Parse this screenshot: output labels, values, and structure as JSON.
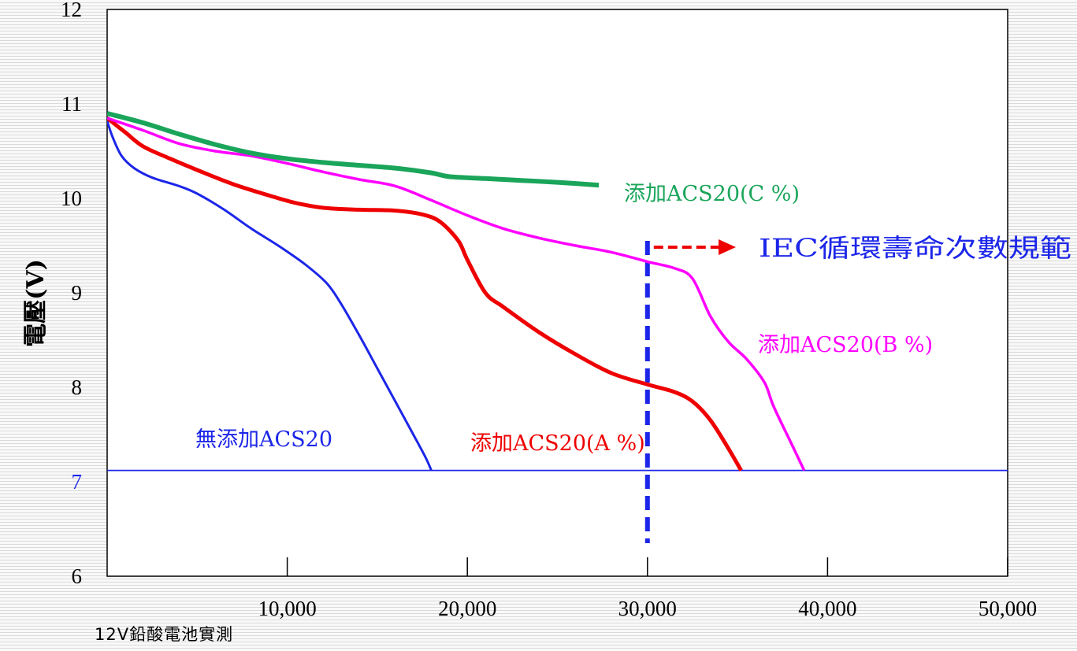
{
  "chart_data": {
    "type": "line",
    "title": "",
    "xlabel": "",
    "ylabel": "電壓(V)",
    "xlim": [
      0,
      50000
    ],
    "ylim": [
      6,
      12
    ],
    "x_ticks": [
      10000,
      20000,
      30000,
      40000,
      50000
    ],
    "x_tick_labels": [
      "10,000",
      "20,000",
      "30,000",
      "40,000",
      "50,000"
    ],
    "y_ticks": [
      6,
      7,
      8,
      9,
      10,
      11,
      12
    ],
    "y_tick_labels": [
      "6",
      "7",
      "8",
      "9",
      "10",
      "11",
      "12"
    ],
    "grid": false,
    "series": [
      {
        "name": "無添加ACS20",
        "color": "#1c26e8",
        "x": [
          0,
          300,
          800,
          1500,
          2500,
          4000,
          5000,
          6500,
          8000,
          9500,
          11000,
          12200,
          13000,
          14000,
          15000,
          16000,
          17000,
          17700,
          18000
        ],
        "y": [
          10.82,
          10.65,
          10.45,
          10.32,
          10.22,
          10.13,
          10.05,
          9.88,
          9.68,
          9.5,
          9.3,
          9.1,
          8.88,
          8.55,
          8.2,
          7.85,
          7.5,
          7.25,
          7.12
        ]
      },
      {
        "name": "添加ACS20(A %)",
        "color": "#ee0000",
        "x": [
          0,
          1000,
          2000,
          3500,
          5000,
          7000,
          9000,
          10500,
          12000,
          14000,
          16000,
          17500,
          18500,
          19500,
          20000,
          21000,
          22000,
          24000,
          26000,
          28000,
          30000,
          31500,
          32500,
          33500,
          34500,
          35200
        ],
        "y": [
          10.85,
          10.7,
          10.55,
          10.42,
          10.3,
          10.15,
          10.03,
          9.95,
          9.9,
          9.88,
          9.87,
          9.83,
          9.75,
          9.55,
          9.35,
          9.0,
          8.85,
          8.58,
          8.35,
          8.15,
          8.03,
          7.95,
          7.85,
          7.65,
          7.35,
          7.12
        ]
      },
      {
        "name": "添加ACS20(B %)",
        "color": "#ff00ff",
        "x": [
          0,
          2000,
          4000,
          6000,
          8000,
          10000,
          12000,
          14000,
          16000,
          18000,
          20000,
          22000,
          24000,
          26000,
          28000,
          30000,
          31500,
          32500,
          33500,
          34500,
          35500,
          36500,
          37000,
          38000,
          38700
        ],
        "y": [
          10.85,
          10.72,
          10.58,
          10.5,
          10.45,
          10.37,
          10.28,
          10.2,
          10.13,
          9.98,
          9.82,
          9.68,
          9.58,
          9.5,
          9.43,
          9.33,
          9.26,
          9.15,
          8.75,
          8.48,
          8.3,
          8.05,
          7.8,
          7.4,
          7.12
        ]
      },
      {
        "name": "添加ACS20(C %)",
        "color": "#1aa55a",
        "x": [
          0,
          2000,
          4000,
          6000,
          8000,
          10000,
          12000,
          14000,
          16000,
          18000,
          19000,
          21000,
          23000,
          25000,
          27300
        ],
        "y": [
          10.9,
          10.8,
          10.68,
          10.57,
          10.48,
          10.42,
          10.38,
          10.35,
          10.32,
          10.27,
          10.23,
          10.21,
          10.19,
          10.17,
          10.14
        ]
      }
    ],
    "reference_lines": [
      {
        "orientation": "horizontal",
        "value": 7.12,
        "color": "#1c26e8",
        "style": "solid"
      },
      {
        "orientation": "vertical",
        "value": 30000,
        "color": "#1c26e8",
        "style": "dashed"
      }
    ],
    "annotation": {
      "text": "IEC循環壽命次數規範",
      "color": "#1c26e8",
      "arrow_color": "#ee0000"
    },
    "y_highlight_tick": {
      "value": 7,
      "color": "#1c26e8"
    }
  },
  "caption": "12V鉛酸電池實測"
}
